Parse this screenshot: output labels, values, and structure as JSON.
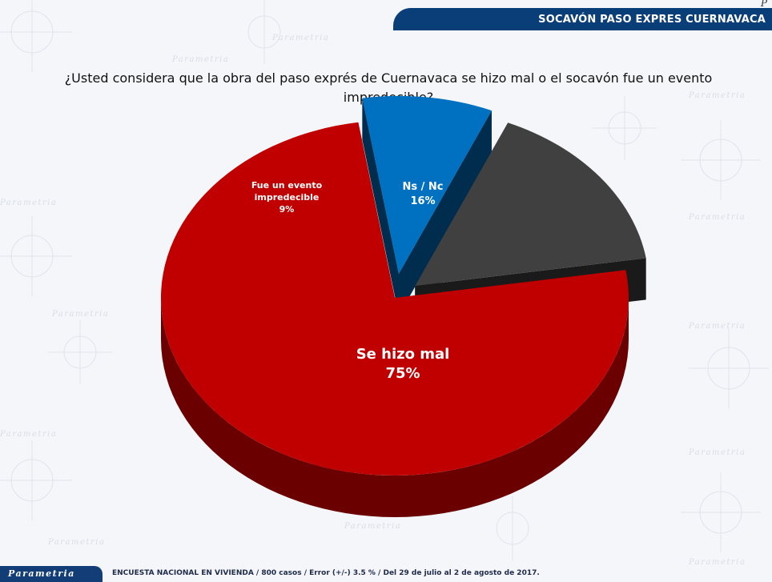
{
  "header": {
    "title": "SOCAVÓN PASO EXPRES CUERNAVACA",
    "corner_letter": "P"
  },
  "background": {
    "watermark_text": "Parametria"
  },
  "question": "¿Usted considera que la obra del paso exprés de Cuernavaca se hizo mal o el socavón fue un evento impredecible?",
  "chart_data": {
    "type": "pie",
    "title": "",
    "series": [
      {
        "slices": [
          {
            "label": "Se hizo mal",
            "value": 75,
            "display": "75%",
            "color": "#c00000"
          },
          {
            "label": "Ns / Nc",
            "value": 16,
            "display": "16%",
            "color": "#404040"
          },
          {
            "label": "Fue un evento impredecible",
            "value": 9,
            "display": "9%",
            "color": "#0070c0"
          }
        ]
      }
    ],
    "three_d": true,
    "legend": "none"
  },
  "footer": {
    "logo": "Parametria",
    "note": "ENCUESTA NACIONAL EN VIVIENDA / 800 casos / Error (+/-) 3.5 % / Del 29 de julio al 2 de agosto de 2017."
  }
}
